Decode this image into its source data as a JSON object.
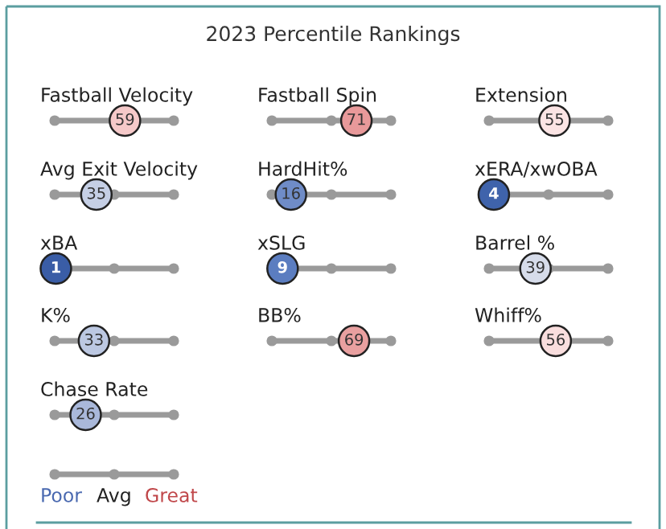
{
  "chart_data": {
    "type": "other",
    "title": "2023 Percentile Rankings",
    "categories": [
      "Fastball Velocity",
      "Fastball Spin",
      "Extension",
      "Avg Exit Velocity",
      "HardHit%",
      "xERA/xwOBA",
      "xBA",
      "xSLG",
      "Barrel %",
      "K%",
      "BB%",
      "Whiff%",
      "Chase Rate"
    ],
    "values": [
      59,
      71,
      55,
      35,
      16,
      4,
      1,
      9,
      39,
      33,
      69,
      56,
      26
    ],
    "colors": [
      "#f5c9c9",
      "#e8999a",
      "#fbe4e4",
      "#c5cfe5",
      "#6f8cc7",
      "#3f63ab",
      "#3a5da6",
      "#5b7dc0",
      "#d6dcea",
      "#bcc8e2",
      "#e9a0a0",
      "#f9dede",
      "#a9b8da"
    ],
    "data_labels": true,
    "annotations": [
      "Poor",
      "Avg",
      "Great"
    ]
  }
}
